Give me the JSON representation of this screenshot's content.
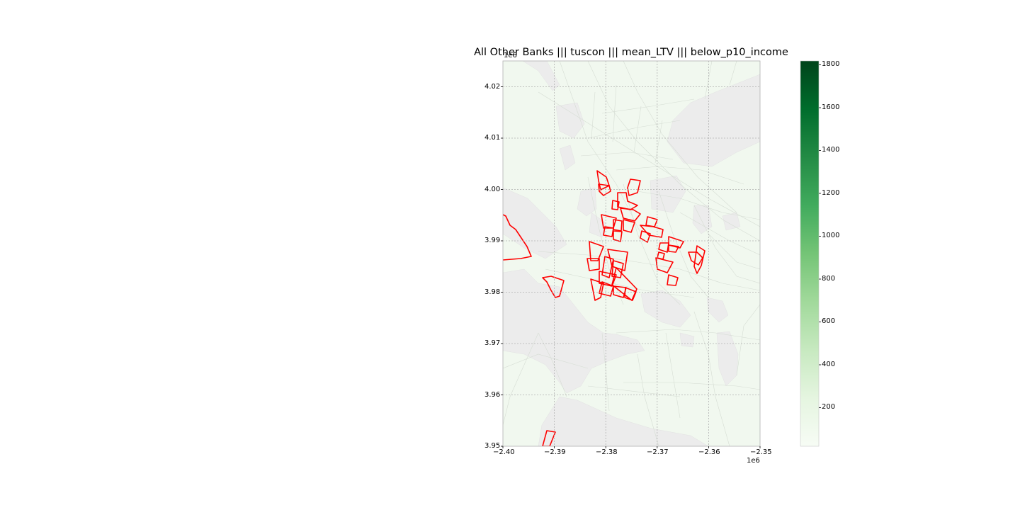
{
  "title": "All Other Banks ||| tuscon ||| mean_LTV ||| below_p10_income",
  "axes": {
    "x": {
      "range": [
        -2.4,
        -2.35
      ],
      "ticks": [
        "−2.40",
        "−2.39",
        "−2.38",
        "−2.37",
        "−2.36",
        "−2.35"
      ],
      "offset": "1e6"
    },
    "y": {
      "range": [
        3.95,
        4.025
      ],
      "ticks": [
        "3.95",
        "3.96",
        "3.97",
        "3.98",
        "3.99",
        "4.00",
        "4.01",
        "4.02"
      ],
      "offset": "1e6"
    },
    "grid": true
  },
  "colorbar": {
    "colormap": "Greens",
    "range": [
      20,
      1820
    ],
    "ticks": [
      "200",
      "400",
      "600",
      "800",
      "1000",
      "1200",
      "1400",
      "1600",
      "1800"
    ]
  },
  "colors": {
    "no_data_fill": "#ececec",
    "low_value_fill": "#f1f8ef",
    "highlight_outline": "#ff0000",
    "tract_edge": "#d6ddd4"
  },
  "legend": "none"
}
